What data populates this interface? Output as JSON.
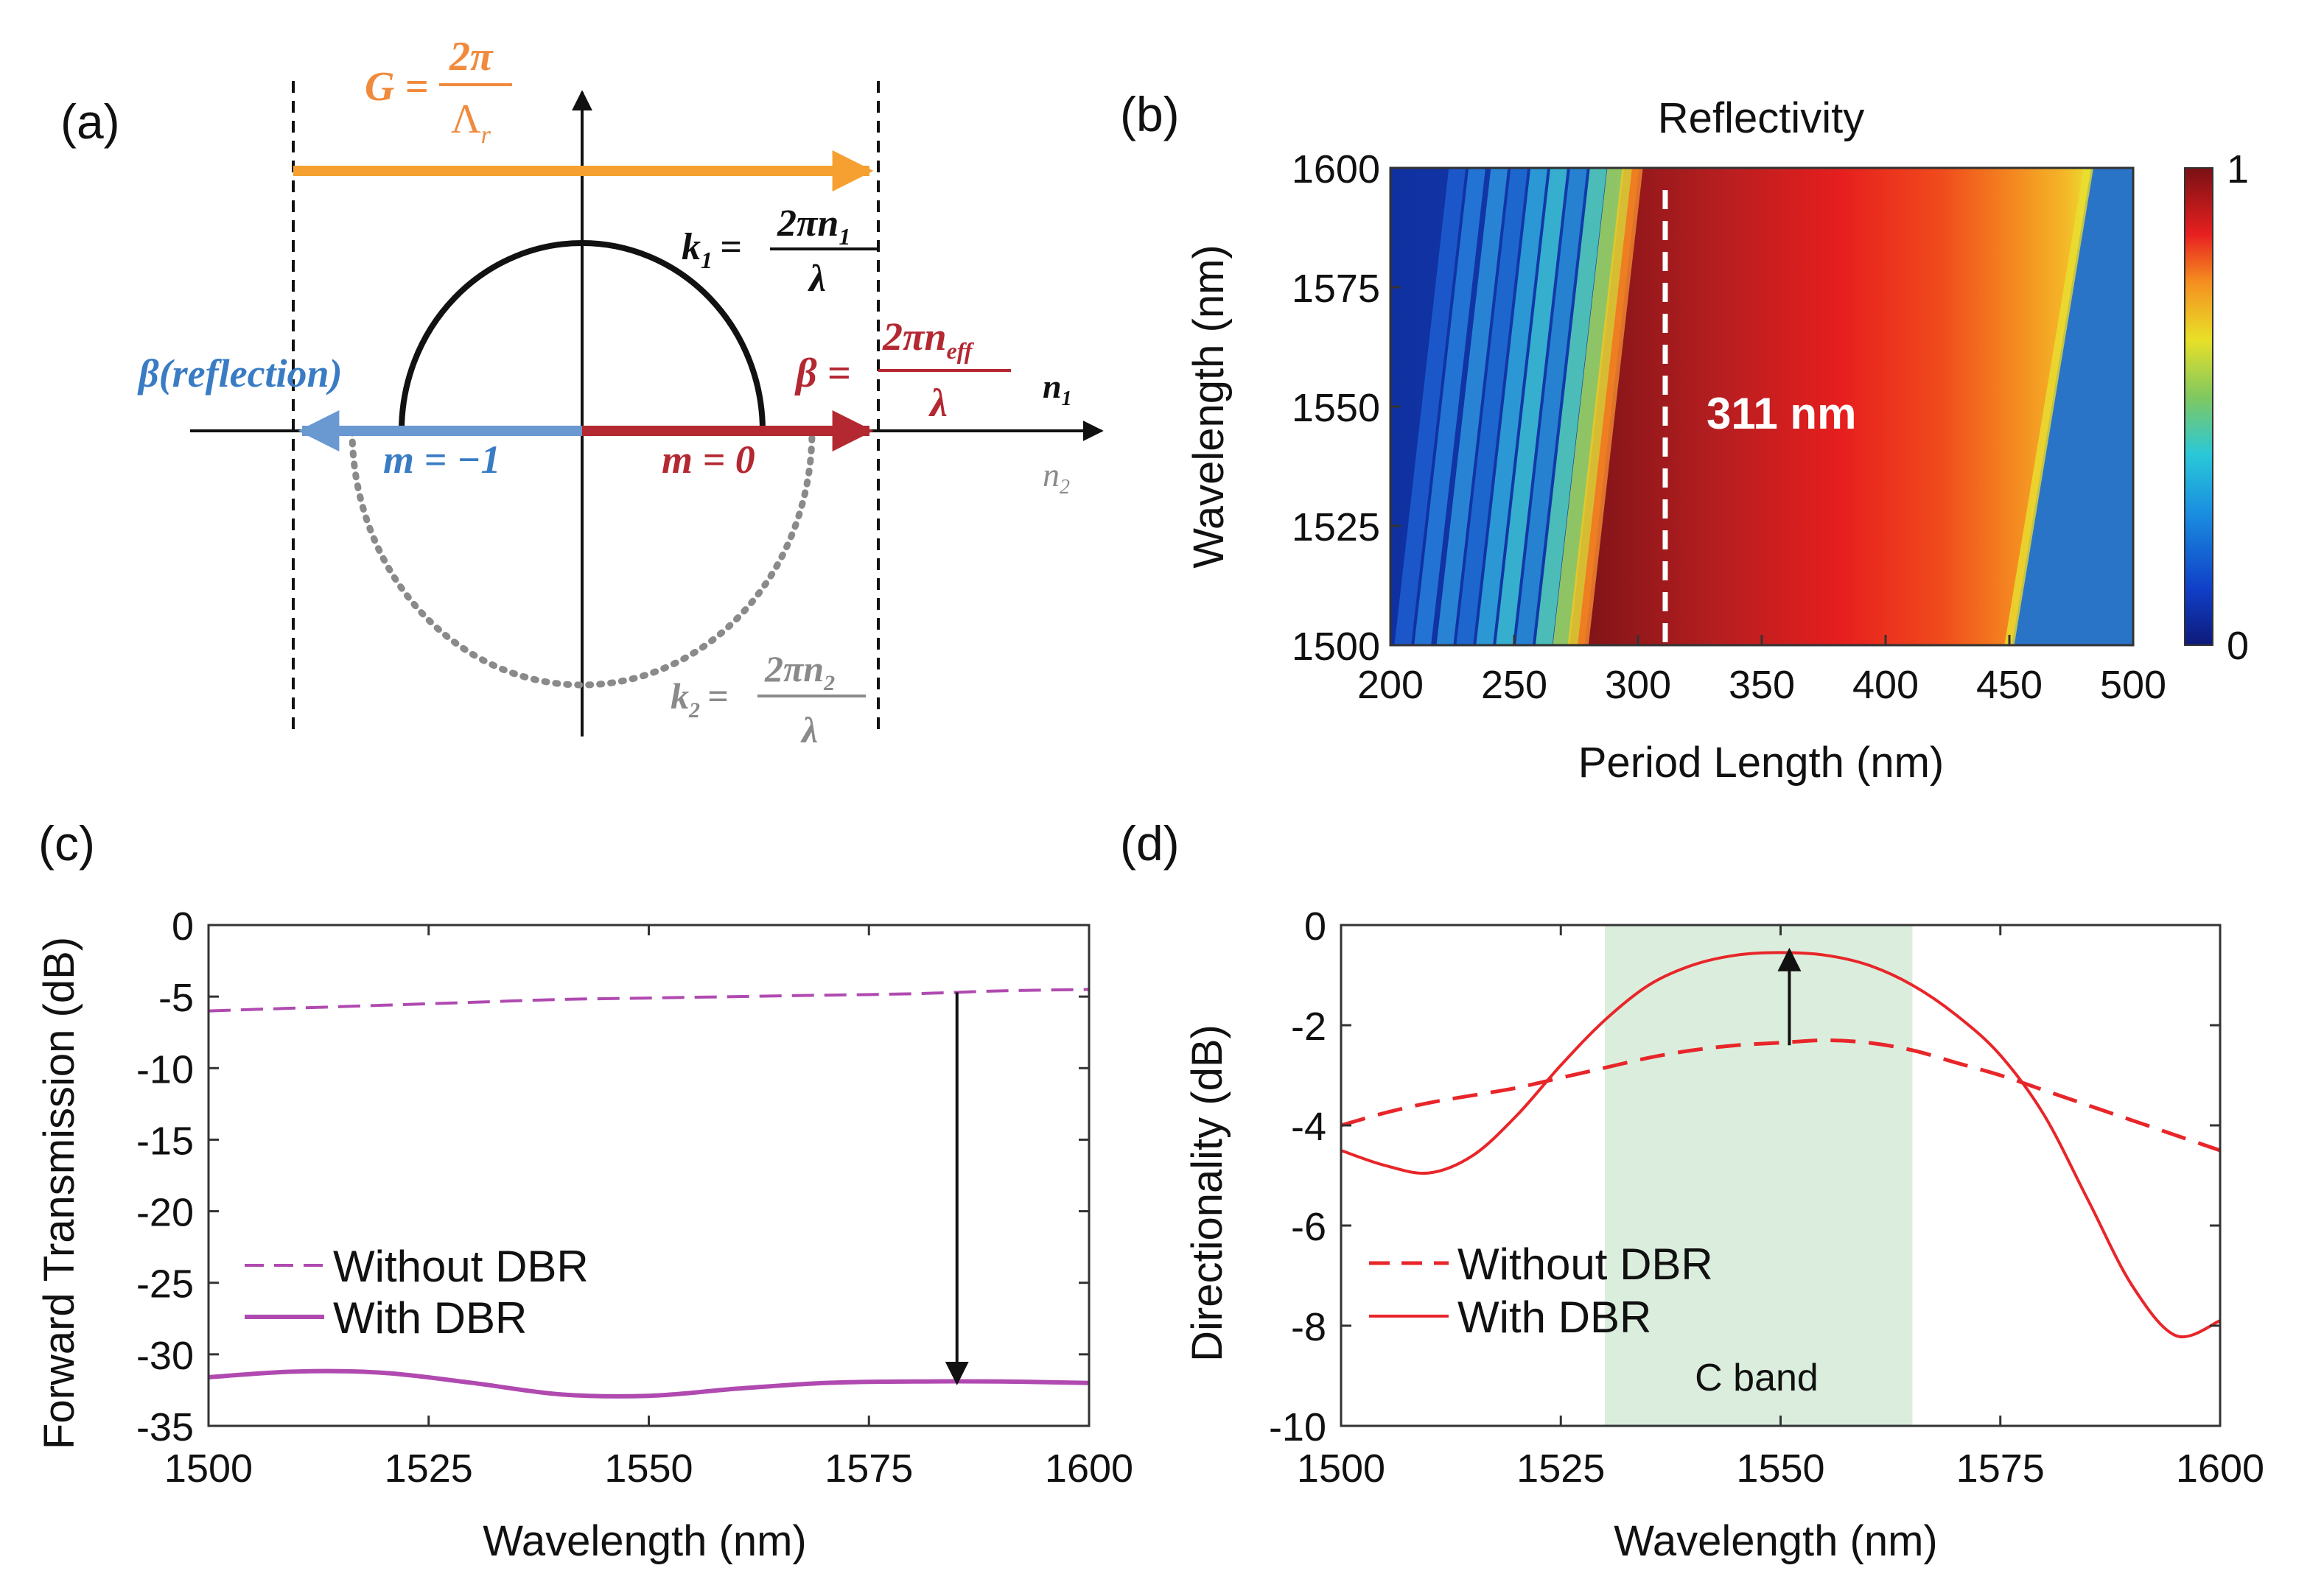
{
  "colors": {
    "orange": "#f5a030",
    "orange_text": "#f08a3c",
    "blue": "#6a98d0",
    "blue_text": "#3a7cc4",
    "dark_red": "#b42832",
    "grey": "#8a8a8a",
    "purple": "#b04ab0",
    "red": "#e8262a",
    "band": "#dbeedd"
  },
  "panel_a": {
    "label": "(a)",
    "G_lhs": "G =",
    "G_num": "2π",
    "G_den_base": "Λ",
    "G_den_sub": "r",
    "k1_lhs": "k",
    "k1_sub": "1",
    "k1_eq": "=",
    "k1_num": "2πn",
    "k1_num_sub": "1",
    "k1_den": "λ",
    "beta_refl": "β(reflection)",
    "beta_lhs": "β =",
    "beta_num": "2πn",
    "beta_num_sub": "eff",
    "beta_den": "λ",
    "n1": "n",
    "n1_sub": "1",
    "n2": "n",
    "n2_sub": "2",
    "m_neg": "m = −1",
    "m_zero": "m = 0",
    "k2_lhs": "k",
    "k2_sub": "2",
    "k2_eq": "=",
    "k2_num": "2πn",
    "k2_num_sub": "2",
    "k2_den": "λ"
  },
  "chart_data": [
    {
      "panel": "(b)",
      "type": "heatmap",
      "title": "Reflectivity",
      "xlabel": "Period Length (nm)",
      "ylabel": "Wavelength (nm)",
      "xlim": [
        200,
        500
      ],
      "ylim": [
        1500,
        1600
      ],
      "xticks": [
        "200",
        "250",
        "300",
        "350",
        "400",
        "450",
        "500"
      ],
      "yticks": [
        "1500",
        "1525",
        "1550",
        "1575",
        "1600"
      ],
      "colorbar": {
        "min": "0",
        "max": "1"
      },
      "marker_line_x": 311,
      "annotation": "311 nm",
      "stopband_edges": {
        "low_at_1500": 280,
        "low_at_1600": 302,
        "high_at_1500": 451,
        "high_at_1600": 483
      },
      "stopband_peak_reflectivity": 1.0
    },
    {
      "panel": "(c)",
      "type": "line",
      "xlabel": "Wavelength (nm)",
      "ylabel": "Forward Transmission (dB)",
      "xlim": [
        1500,
        1600
      ],
      "ylim": [
        -35,
        0
      ],
      "xticks": [
        "1500",
        "1525",
        "1550",
        "1575",
        "1600"
      ],
      "yticks": [
        "0",
        "-5",
        "-10",
        "-15",
        "-20",
        "-25",
        "-30",
        "-35"
      ],
      "x": [
        1500,
        1510,
        1520,
        1530,
        1540,
        1550,
        1560,
        1570,
        1580,
        1590,
        1600
      ],
      "series": [
        {
          "name": "Without DBR",
          "style": "dashed",
          "values": [
            -6.0,
            -5.8,
            -5.6,
            -5.4,
            -5.2,
            -5.1,
            -5.0,
            -4.9,
            -4.8,
            -4.6,
            -4.5
          ]
        },
        {
          "name": "With DBR",
          "style": "solid",
          "values": [
            -31.6,
            -31.2,
            -31.3,
            -32.0,
            -32.8,
            -32.9,
            -32.4,
            -32.0,
            -31.9,
            -31.9,
            -32.0
          ]
        }
      ],
      "arrow": {
        "x": 1585,
        "from": -4.7,
        "to": -32.0
      }
    },
    {
      "panel": "(d)",
      "type": "line",
      "xlabel": "Wavelength (nm)",
      "ylabel": "Directionality (dB)",
      "xlim": [
        1500,
        1600
      ],
      "ylim": [
        -10,
        0
      ],
      "xticks": [
        "1500",
        "1525",
        "1550",
        "1575",
        "1600"
      ],
      "yticks": [
        "0",
        "-2",
        "-4",
        "-6",
        "-8",
        "-10"
      ],
      "band": {
        "label": "C band",
        "from": 1530,
        "to": 1565
      },
      "x": [
        1500,
        1505,
        1510,
        1515,
        1520,
        1525,
        1530,
        1535,
        1540,
        1545,
        1550,
        1555,
        1560,
        1565,
        1570,
        1575,
        1580,
        1585,
        1590,
        1595,
        1600
      ],
      "series": [
        {
          "name": "Without DBR",
          "style": "dashed",
          "values": [
            -4.0,
            -3.75,
            -3.55,
            -3.4,
            -3.25,
            -3.05,
            -2.85,
            -2.65,
            -2.5,
            -2.4,
            -2.35,
            -2.3,
            -2.35,
            -2.5,
            -2.75,
            -3.0,
            -3.3,
            -3.6,
            -3.9,
            -4.2,
            -4.5
          ]
        },
        {
          "name": "With DBR",
          "style": "solid",
          "values": [
            -4.5,
            -4.8,
            -4.95,
            -4.6,
            -3.8,
            -2.8,
            -1.9,
            -1.2,
            -0.8,
            -0.6,
            -0.55,
            -0.6,
            -0.8,
            -1.2,
            -1.8,
            -2.6,
            -3.8,
            -5.5,
            -7.2,
            -8.2,
            -7.9
          ]
        }
      ],
      "arrow": {
        "x": 1551,
        "from": -2.4,
        "to": -0.5
      }
    }
  ]
}
